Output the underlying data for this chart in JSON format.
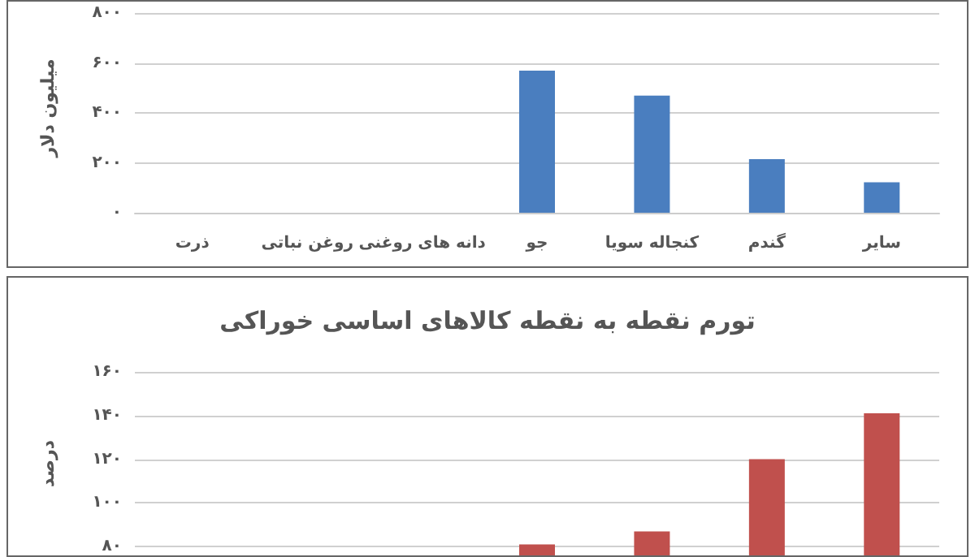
{
  "chart_data": [
    {
      "type": "bar",
      "ylabel": "میلیون دلار",
      "categories": [
        "ذرت",
        "روغن نباتی",
        "دانه های روغنی",
        "جو",
        "کنجاله سویا",
        "گندم",
        "سایر"
      ],
      "values": [
        null,
        null,
        null,
        570,
        470,
        215,
        122
      ],
      "color": "#4a7ebf",
      "ylim": [
        0,
        840
      ],
      "yticks": [
        {
          "value": 0,
          "label": "۰"
        },
        {
          "value": 200,
          "label": "۲۰۰"
        },
        {
          "value": 400,
          "label": "۴۰۰"
        },
        {
          "value": 600,
          "label": "۶۰۰"
        },
        {
          "value": 800,
          "label": "۸۰۰"
        }
      ],
      "grid": "y"
    },
    {
      "type": "bar",
      "title": "تورم نقطه به نقطه کالاهای اساسی خوراکی",
      "ylabel": "درصد",
      "categories": [
        null,
        null,
        null,
        null,
        null,
        null,
        null
      ],
      "values": [
        null,
        null,
        null,
        81,
        87,
        120,
        141
      ],
      "color": "#c0504d",
      "ylim": [
        76,
        160
      ],
      "yticks": [
        {
          "value": 80,
          "label": "۸۰"
        },
        {
          "value": 100,
          "label": "۱۰۰"
        },
        {
          "value": 120,
          "label": "۱۲۰"
        },
        {
          "value": 140,
          "label": "۱۴۰"
        },
        {
          "value": 160,
          "label": "۱۶۰"
        }
      ],
      "grid": "y",
      "tick_labels": "y"
    }
  ]
}
